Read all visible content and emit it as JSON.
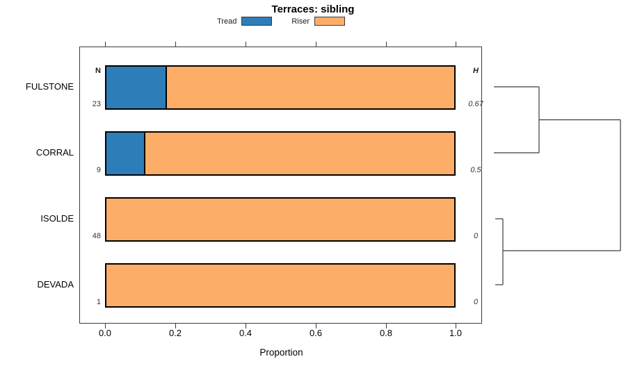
{
  "title": "Terraces: sibling",
  "legend": {
    "items": [
      {
        "label": "Tread",
        "color": "#2d7eb8"
      },
      {
        "label": "Riser",
        "color": "#fcae68"
      }
    ]
  },
  "chart_data": {
    "type": "bar",
    "orientation": "horizontal",
    "stacked": true,
    "title": "Terraces: sibling",
    "xlabel": "Proportion",
    "xlim": [
      0.0,
      1.0
    ],
    "x_ticks": [
      "0.0",
      "0.2",
      "0.4",
      "0.6",
      "0.8",
      "1.0"
    ],
    "grid": false,
    "legend_position": "top",
    "categories": [
      "FULSTONE",
      "CORRAL",
      "ISOLDE",
      "DEVADA"
    ],
    "series": [
      {
        "name": "Tread",
        "color": "#2d7eb8",
        "values": [
          0.174,
          0.111,
          0,
          0
        ]
      },
      {
        "name": "Riser",
        "color": "#fcae68",
        "values": [
          0.826,
          0.889,
          1.0,
          1.0
        ]
      }
    ],
    "n_column": {
      "header": "N",
      "values": [
        "23",
        "9",
        "48",
        "1"
      ]
    },
    "h_column": {
      "header": "H",
      "values": [
        "0.67",
        "0.5",
        "0",
        "0"
      ]
    },
    "annotation": "right-side dendrogram: FULSTONE+CORRAL cluster joins ISOLDE+DEVADA cluster at root"
  }
}
